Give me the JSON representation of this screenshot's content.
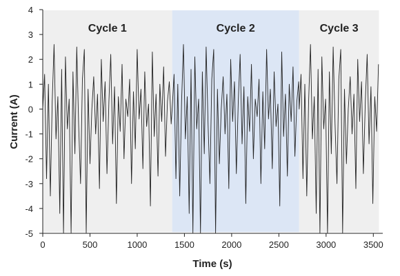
{
  "chart_data": {
    "type": "line",
    "xlabel": "Time (s)",
    "ylabel": "Current (A)",
    "xlim": [
      0,
      3600
    ],
    "ylim": [
      -5,
      4
    ],
    "x_ticks": [
      0,
      500,
      1000,
      1500,
      2000,
      2500,
      3000,
      3500
    ],
    "y_ticks": [
      -5,
      -4,
      -3,
      -2,
      -1,
      0,
      1,
      2,
      3,
      4
    ],
    "grid": false,
    "legend": "none",
    "regions": [
      {
        "label": "Cycle 1",
        "x_start": 0,
        "x_end": 1370,
        "color": "#efefef"
      },
      {
        "label": "Cycle 2",
        "x_start": 1370,
        "x_end": 2715,
        "color": "#dce6f5"
      },
      {
        "label": "Cycle 3",
        "x_start": 2715,
        "x_end": 3560,
        "color": "#efefef"
      }
    ],
    "series": [
      {
        "color": "#222222",
        "description": "Fluctuating current profile, roughly between -5 and 2.7 A, repeated in three cycles",
        "x": [
          0,
          20,
          40,
          60,
          80,
          100,
          120,
          140,
          160,
          180,
          200,
          220,
          240,
          260,
          280,
          300,
          320,
          340,
          360,
          380,
          400,
          420,
          440,
          460,
          480,
          500,
          520,
          540,
          560,
          580,
          600,
          620,
          640,
          660,
          680,
          700,
          720,
          740,
          760,
          780,
          800,
          820,
          840,
          860,
          880,
          900,
          920,
          940,
          960,
          980,
          1000,
          1020,
          1040,
          1060,
          1080,
          1100,
          1120,
          1140,
          1160,
          1180,
          1200,
          1220,
          1240,
          1260,
          1280,
          1300,
          1320,
          1340,
          1360
        ],
        "y_cycle": [
          0,
          1.4,
          -2.8,
          1.0,
          -3.5,
          0.3,
          2.6,
          -1.2,
          0.5,
          -4.2,
          1.6,
          -5,
          2.1,
          -0.8,
          0.4,
          -5,
          1.5,
          -1.8,
          2.5,
          -0.6,
          -3.0,
          1.2,
          2.4,
          -5,
          0.8,
          -2.2,
          0,
          1.3,
          -1.0,
          0.6,
          -3.2,
          2.0,
          -0.5,
          1.1,
          -2.6,
          0.3,
          2.2,
          -1.4,
          0.9,
          -3.8,
          0.5,
          -0.9,
          1.8,
          -2.0,
          0.4,
          -0.3,
          1.2,
          -3.0,
          0.7,
          -1.6,
          2.4,
          -0.4,
          0.8,
          -2.4,
          1.5,
          -0.7,
          0.2,
          -3.9,
          2.3,
          -1.1,
          0.6,
          -2.7,
          1.0,
          -0.5,
          1.7,
          -1.9,
          0.3,
          1.1,
          -0.6
        ]
      }
    ]
  }
}
